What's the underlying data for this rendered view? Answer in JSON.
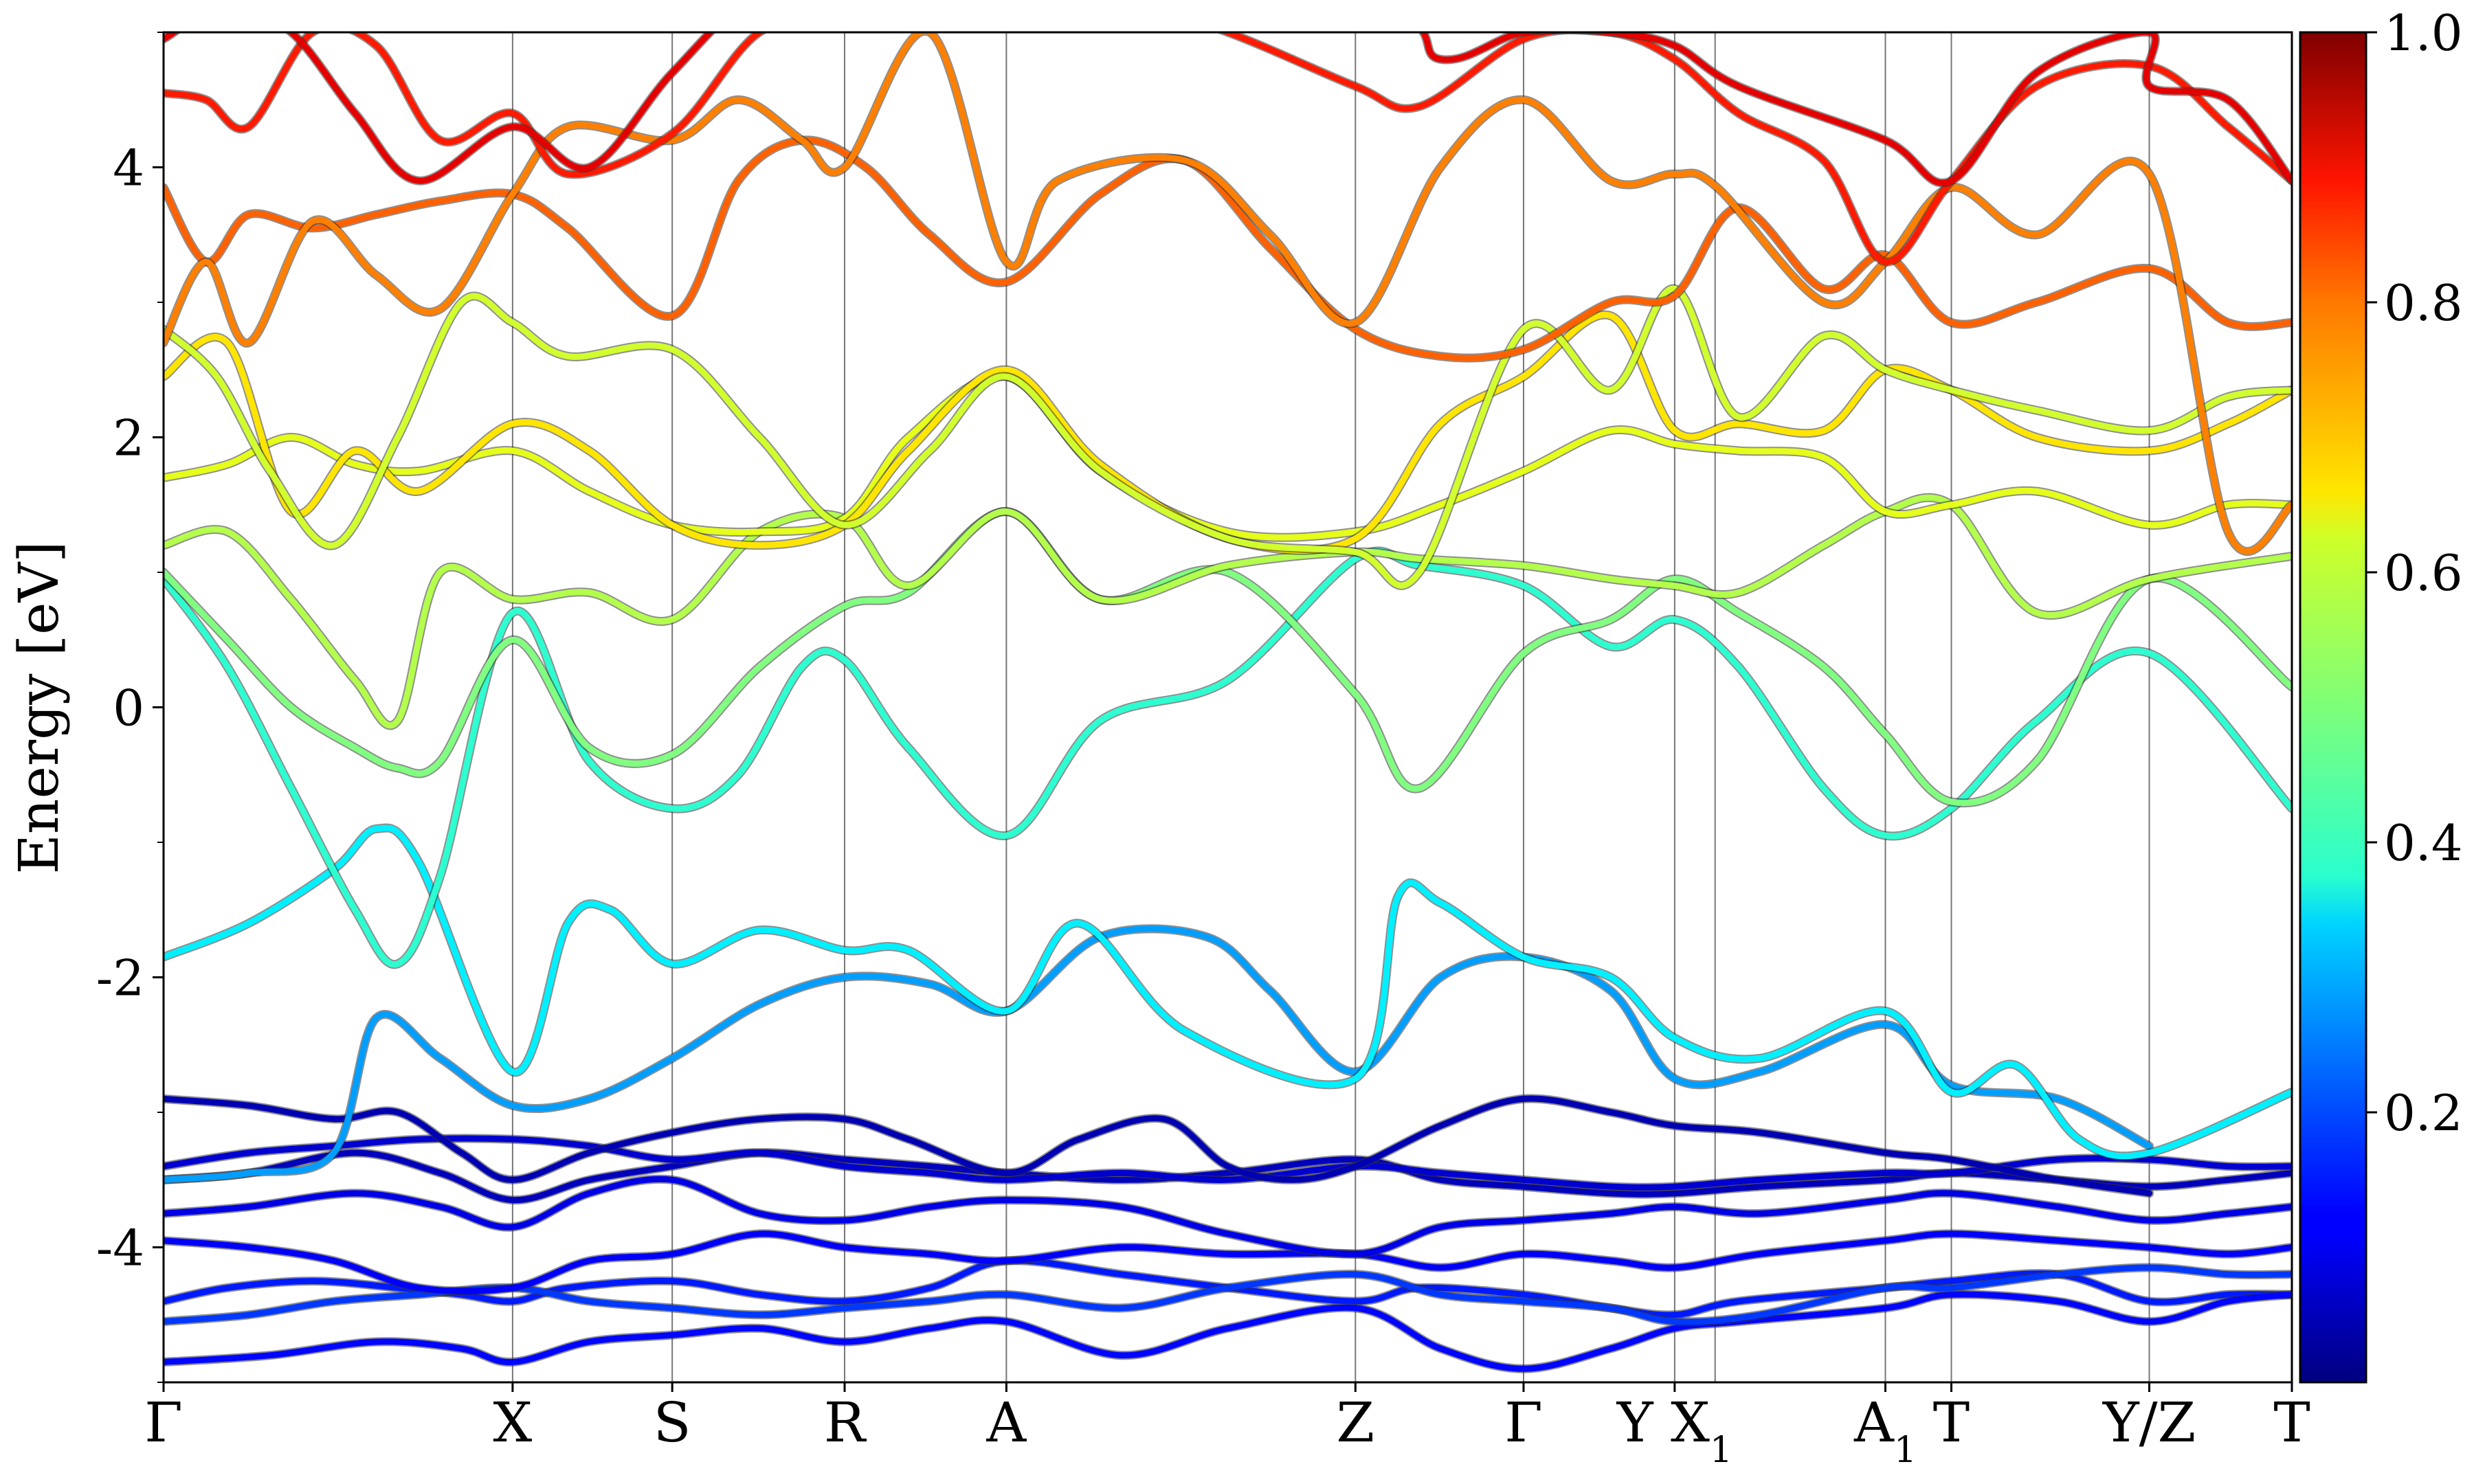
{
  "chart_data": {
    "type": "line",
    "ylabel": "Energy [eV]",
    "ylim": [
      -5,
      5
    ],
    "yticks": [
      "-4",
      "-2",
      "0",
      "2",
      "4"
    ],
    "ytick_values": [
      -4,
      -2,
      0,
      2,
      4
    ],
    "kpath": [
      {
        "label": "Γ",
        "sub": "",
        "x": 0.0
      },
      {
        "label": "X",
        "sub": "",
        "x": 1.64
      },
      {
        "label": "S",
        "sub": "",
        "x": 2.39
      },
      {
        "label": "R",
        "sub": "",
        "x": 3.2
      },
      {
        "label": "A",
        "sub": "",
        "x": 3.96
      },
      {
        "label": "Z",
        "sub": "",
        "x": 5.6
      },
      {
        "label": "Γ",
        "sub": "",
        "x": 6.39
      },
      {
        "label": "Y X",
        "sub": "1",
        "x": 7.1
      },
      {
        "label": "A",
        "sub": "1",
        "x": 8.09
      },
      {
        "label": "T",
        "sub": "",
        "x": 8.4
      },
      {
        "label": "Y/Z",
        "sub": "",
        "x": 9.33
      },
      {
        "label": "T",
        "sub": "",
        "x": 10.0
      }
    ],
    "vlines": [
      1.64,
      2.39,
      3.2,
      3.96,
      5.6,
      6.39,
      7.1,
      7.29,
      8.09,
      8.4,
      9.33
    ],
    "xlim": [
      0,
      10
    ],
    "colorbar": {
      "colormap": "jet",
      "range": [
        0,
        1
      ],
      "tick_values": [
        0.2,
        0.4,
        0.6,
        0.8,
        1.0
      ],
      "tick_labels": [
        "0.2",
        "0.4",
        "0.6",
        "0.8",
        "1.0"
      ]
    },
    "series": [
      {
        "x": [
          0,
          0.3,
          0.7,
          1.1,
          1.4,
          1.64,
          1.9,
          2.39,
          2.8,
          3.2,
          3.6,
          3.96,
          4.5,
          5.0,
          5.6,
          5.9,
          6.39,
          6.8,
          7.1,
          7.4,
          8.09,
          8.4,
          8.9,
          9.33,
          9.7,
          10.0
        ],
        "y": [
          -4.4,
          -4.3,
          -4.25,
          -4.3,
          -4.35,
          -4.4,
          -4.3,
          -4.25,
          -4.35,
          -4.4,
          -4.3,
          -4.1,
          -4.2,
          -4.3,
          -4.4,
          -4.3,
          -4.35,
          -4.45,
          -4.5,
          -4.4,
          -4.3,
          -4.25,
          -4.2,
          -4.4,
          -4.35,
          -4.35
        ],
        "c": 0.15
      },
      {
        "x": [
          0,
          0.5,
          1.0,
          1.4,
          1.64,
          2.0,
          2.39,
          2.8,
          3.2,
          3.6,
          3.96,
          4.5,
          5.0,
          5.6,
          6.0,
          6.39,
          6.8,
          7.1,
          7.4,
          8.09,
          8.4,
          8.9,
          9.33,
          9.7,
          10.0
        ],
        "y": [
          -4.85,
          -4.8,
          -4.7,
          -4.75,
          -4.85,
          -4.7,
          -4.65,
          -4.6,
          -4.7,
          -4.6,
          -4.55,
          -4.8,
          -4.6,
          -4.45,
          -4.75,
          -4.9,
          -4.75,
          -4.6,
          -4.55,
          -4.45,
          -4.35,
          -4.4,
          -4.55,
          -4.4,
          -4.35
        ],
        "c": 0.13
      },
      {
        "x": [
          0,
          0.4,
          0.8,
          1.2,
          1.64,
          2.0,
          2.39,
          2.8,
          3.2,
          3.6,
          3.96,
          4.5,
          5.0,
          5.6,
          6.0,
          6.39,
          6.8,
          7.1,
          7.5,
          8.09,
          8.4,
          8.9,
          9.33,
          9.7,
          10.0
        ],
        "y": [
          -4.55,
          -4.5,
          -4.4,
          -4.35,
          -4.3,
          -4.4,
          -4.45,
          -4.5,
          -4.45,
          -4.4,
          -4.35,
          -4.45,
          -4.3,
          -4.2,
          -4.35,
          -4.4,
          -4.45,
          -4.55,
          -4.5,
          -4.3,
          -4.3,
          -4.2,
          -4.15,
          -4.2,
          -4.2
        ],
        "c": 0.18
      },
      {
        "x": [
          0,
          0.4,
          0.8,
          1.2,
          1.64,
          2.0,
          2.39,
          2.8,
          3.2,
          3.6,
          3.96,
          4.5,
          5.0,
          5.6,
          6.0,
          6.39,
          6.8,
          7.1,
          7.5,
          8.09,
          8.4,
          8.9,
          9.33,
          9.7,
          10.0
        ],
        "y": [
          -3.95,
          -4.0,
          -4.1,
          -4.3,
          -4.3,
          -4.1,
          -4.05,
          -3.9,
          -4.0,
          -4.05,
          -4.1,
          -4.0,
          -4.05,
          -4.05,
          -4.15,
          -4.05,
          -4.1,
          -4.15,
          -4.05,
          -3.95,
          -3.9,
          -3.95,
          -4.0,
          -4.05,
          -4.0
        ],
        "c": 0.12
      },
      {
        "x": [
          0,
          0.4,
          0.9,
          1.3,
          1.64,
          2.0,
          2.39,
          2.8,
          3.2,
          3.6,
          3.96,
          4.5,
          5.0,
          5.6,
          6.0,
          6.39,
          6.8,
          7.1,
          7.5,
          8.09,
          8.4,
          8.9,
          9.33,
          9.7,
          10.0
        ],
        "y": [
          -3.75,
          -3.7,
          -3.6,
          -3.7,
          -3.85,
          -3.6,
          -3.5,
          -3.75,
          -3.8,
          -3.7,
          -3.65,
          -3.7,
          -3.9,
          -4.05,
          -3.85,
          -3.8,
          -3.75,
          -3.7,
          -3.75,
          -3.65,
          -3.6,
          -3.7,
          -3.8,
          -3.75,
          -3.7
        ],
        "c": 0.1
      },
      {
        "x": [
          0,
          0.4,
          0.9,
          1.3,
          1.64,
          2.0,
          2.39,
          2.8,
          3.2,
          3.6,
          3.96,
          4.5,
          5.0,
          5.6,
          6.0,
          6.39,
          6.8,
          7.1,
          7.5,
          8.09,
          8.4,
          8.9,
          9.33,
          9.7,
          10.0
        ],
        "y": [
          -3.5,
          -3.45,
          -3.3,
          -3.45,
          -3.65,
          -3.5,
          -3.4,
          -3.3,
          -3.35,
          -3.4,
          -3.45,
          -3.5,
          -3.45,
          -3.35,
          -3.5,
          -3.55,
          -3.6,
          -3.6,
          -3.55,
          -3.5,
          -3.45,
          -3.5,
          -3.55,
          -3.5,
          -3.45
        ],
        "c": 0.06
      },
      {
        "x": [
          0,
          0.4,
          0.8,
          1.2,
          1.64,
          2.0,
          2.39,
          2.8,
          3.2,
          3.6,
          3.96,
          4.5,
          5.0,
          5.6,
          6.0,
          6.39,
          6.8,
          7.1,
          7.5,
          8.09,
          8.4,
          8.9,
          9.33,
          9.7,
          10.0
        ],
        "y": [
          -3.4,
          -3.3,
          -3.25,
          -3.2,
          -3.2,
          -3.25,
          -3.35,
          -3.3,
          -3.4,
          -3.45,
          -3.5,
          -3.45,
          -3.5,
          -3.4,
          -3.45,
          -3.5,
          -3.55,
          -3.55,
          -3.5,
          -3.45,
          -3.45,
          -3.35,
          -3.35,
          -3.4,
          -3.4
        ],
        "c": 0.08
      },
      {
        "x": [
          0,
          0.4,
          0.8,
          1.1,
          1.4,
          1.64,
          2.0,
          2.39,
          2.8,
          3.2,
          3.5,
          3.96,
          4.3,
          4.7,
          5.0,
          5.3,
          5.6,
          6.0,
          6.39,
          6.8,
          7.1,
          7.5,
          8.09,
          8.4,
          8.9,
          9.33
        ],
        "y": [
          -2.9,
          -2.95,
          -3.05,
          -3.0,
          -3.3,
          -3.5,
          -3.3,
          -3.15,
          -3.05,
          -3.05,
          -3.2,
          -3.45,
          -3.2,
          -3.05,
          -3.4,
          -3.5,
          -3.4,
          -3.1,
          -2.9,
          -3.0,
          -3.1,
          -3.15,
          -3.3,
          -3.35,
          -3.5,
          -3.6
        ],
        "c": 0.05
      },
      {
        "x": [
          0,
          0.4,
          0.8,
          1.0,
          1.3,
          1.64,
          2.0,
          2.39,
          2.8,
          3.2,
          3.6,
          3.96,
          4.4,
          4.9,
          5.2,
          5.6,
          6.0,
          6.39,
          6.8,
          7.1,
          7.5,
          8.09,
          8.4,
          8.9,
          9.33
        ],
        "y": [
          -3.5,
          -3.45,
          -3.3,
          -2.3,
          -2.6,
          -2.95,
          -2.9,
          -2.6,
          -2.2,
          -2.0,
          -2.05,
          -2.25,
          -1.7,
          -1.7,
          -2.1,
          -2.7,
          -2.0,
          -1.85,
          -2.1,
          -2.75,
          -2.7,
          -2.35,
          -2.8,
          -2.9,
          -3.25
        ],
        "c": 0.28
      },
      {
        "x": [
          0,
          0.4,
          0.8,
          1.0,
          1.2,
          1.64,
          1.9,
          2.1,
          2.39,
          2.8,
          3.2,
          3.5,
          3.96,
          4.3,
          4.8,
          5.6,
          5.8,
          6.0,
          6.39,
          6.8,
          7.1,
          7.5,
          8.09,
          8.4,
          8.7,
          9.0,
          9.33,
          10.0
        ],
        "y": [
          -1.85,
          -1.6,
          -1.2,
          -0.9,
          -1.15,
          -2.7,
          -1.6,
          -1.5,
          -1.9,
          -1.65,
          -1.8,
          -1.8,
          -2.25,
          -1.6,
          -2.4,
          -2.75,
          -1.4,
          -1.45,
          -1.85,
          -2.0,
          -2.45,
          -2.6,
          -2.25,
          -2.85,
          -2.65,
          -3.2,
          -3.3,
          -2.85
        ],
        "c": 0.36
      },
      {
        "x": [
          0,
          0.3,
          0.6,
          0.9,
          1.1,
          1.3,
          1.64,
          2.0,
          2.39,
          2.7,
          3.0,
          3.2,
          3.5,
          3.96,
          4.4,
          5.0,
          5.6,
          5.9,
          6.39,
          6.8,
          7.1,
          7.4,
          7.8,
          8.09,
          8.4,
          8.8,
          9.33,
          10.0
        ],
        "y": [
          0.95,
          0.3,
          -0.6,
          -1.5,
          -1.9,
          -1.25,
          0.7,
          -0.4,
          -0.75,
          -0.5,
          0.3,
          0.35,
          -0.3,
          -0.95,
          -0.1,
          0.2,
          1.1,
          1.05,
          0.9,
          0.45,
          0.65,
          0.3,
          -0.6,
          -0.95,
          -0.75,
          -0.1,
          0.4,
          -0.75
        ],
        "c": 0.42
      },
      {
        "x": [
          0,
          0.3,
          0.6,
          0.9,
          1.1,
          1.3,
          1.64,
          2.0,
          2.39,
          2.8,
          3.2,
          3.5,
          3.96,
          4.4,
          5.0,
          5.6,
          5.9,
          6.39,
          6.8,
          7.1,
          7.4,
          7.8,
          8.09,
          8.4,
          8.8,
          9.33,
          10.0
        ],
        "y": [
          1.0,
          0.5,
          0.0,
          -0.3,
          -0.45,
          -0.4,
          0.5,
          -0.3,
          -0.35,
          0.3,
          0.75,
          0.85,
          1.45,
          0.8,
          1.0,
          0.1,
          -0.6,
          0.4,
          0.65,
          0.95,
          0.7,
          0.3,
          -0.2,
          -0.7,
          -0.4,
          0.95,
          0.15
        ],
        "c": 0.5
      },
      {
        "x": [
          0,
          0.3,
          0.6,
          0.9,
          1.1,
          1.3,
          1.64,
          2.0,
          2.39,
          2.8,
          3.2,
          3.5,
          3.96,
          4.4,
          5.0,
          5.6,
          5.9,
          6.39,
          6.8,
          7.1,
          7.4,
          7.8,
          8.09,
          8.4,
          8.8,
          9.33,
          10.0
        ],
        "y": [
          1.2,
          1.3,
          0.8,
          0.2,
          -0.1,
          1.0,
          0.8,
          0.85,
          0.65,
          1.3,
          1.4,
          0.9,
          1.45,
          0.8,
          1.05,
          1.15,
          1.1,
          1.05,
          0.95,
          0.9,
          0.85,
          1.2,
          1.45,
          1.5,
          0.7,
          0.95,
          1.12
        ],
        "c": 0.55
      },
      {
        "x": [
          0,
          0.3,
          0.6,
          0.9,
          1.2,
          1.64,
          2.0,
          2.39,
          2.8,
          3.2,
          3.5,
          3.96,
          4.4,
          5.0,
          5.6,
          6.0,
          6.39,
          6.8,
          7.1,
          7.4,
          7.8,
          8.09,
          8.4,
          8.8,
          9.33,
          9.7,
          10.0
        ],
        "y": [
          1.7,
          1.8,
          2.0,
          1.8,
          1.75,
          1.9,
          1.6,
          1.35,
          1.3,
          1.4,
          2.0,
          2.45,
          1.75,
          1.3,
          1.3,
          1.5,
          1.75,
          2.05,
          1.95,
          1.9,
          1.85,
          1.45,
          1.5,
          1.6,
          1.35,
          1.5,
          1.5
        ],
        "c": 0.6
      },
      {
        "x": [
          0,
          0.3,
          0.6,
          0.9,
          1.2,
          1.64,
          2.0,
          2.39,
          2.8,
          3.2,
          3.5,
          3.96,
          4.4,
          5.0,
          5.6,
          6.0,
          6.39,
          6.8,
          7.1,
          7.4,
          7.8,
          8.09,
          8.4,
          8.8,
          9.33,
          9.7,
          10.0
        ],
        "y": [
          2.45,
          2.7,
          1.45,
          1.9,
          1.6,
          2.1,
          1.9,
          1.35,
          1.2,
          1.35,
          1.9,
          2.5,
          1.8,
          1.25,
          1.25,
          2.1,
          2.45,
          2.9,
          2.05,
          2.1,
          2.05,
          2.5,
          2.35,
          2.0,
          1.9,
          2.1,
          2.35
        ],
        "c": 0.65
      },
      {
        "x": [
          0,
          0.25,
          0.5,
          0.8,
          1.1,
          1.4,
          1.64,
          1.9,
          2.39,
          2.8,
          3.2,
          3.6,
          3.96,
          4.4,
          5.0,
          5.6,
          5.9,
          6.39,
          6.8,
          7.1,
          7.4,
          7.8,
          8.09,
          8.4,
          8.8,
          9.33,
          9.7,
          10.0
        ],
        "y": [
          2.8,
          2.45,
          1.75,
          1.2,
          2.0,
          3.0,
          2.85,
          2.6,
          2.65,
          2.0,
          1.35,
          1.9,
          2.45,
          1.75,
          1.25,
          1.15,
          1.0,
          2.8,
          2.35,
          3.1,
          2.15,
          2.75,
          2.5,
          2.35,
          2.2,
          2.05,
          2.3,
          2.35
        ],
        "c": 0.58
      },
      {
        "x": [
          0,
          0.2,
          0.4,
          0.7,
          1.0,
          1.3,
          1.64,
          1.9,
          2.39,
          2.7,
          3.0,
          3.3,
          3.6,
          3.96,
          4.4,
          4.8,
          5.2,
          5.6,
          6.0,
          6.39,
          6.8,
          7.1,
          7.4,
          7.8,
          8.09,
          8.4,
          8.8,
          9.33,
          9.7,
          10.0
        ],
        "y": [
          3.85,
          3.3,
          3.65,
          3.55,
          3.65,
          3.75,
          3.8,
          3.55,
          2.9,
          3.9,
          4.2,
          4.0,
          3.5,
          3.15,
          3.8,
          4.05,
          3.4,
          2.8,
          2.6,
          2.65,
          3.0,
          3.05,
          3.7,
          3.1,
          3.35,
          2.85,
          3.0,
          3.25,
          2.85,
          2.85
        ],
        "c": 0.78
      },
      {
        "x": [
          0,
          0.2,
          0.4,
          0.7,
          1.0,
          1.3,
          1.64,
          1.9,
          2.39,
          2.7,
          3.0,
          3.2,
          3.6,
          3.96,
          4.2,
          4.8,
          5.2,
          5.6,
          6.0,
          6.39,
          6.8,
          7.1,
          7.3,
          7.8,
          8.09,
          8.4,
          8.8,
          9.33,
          9.7,
          10.0
        ],
        "y": [
          2.7,
          3.3,
          2.7,
          3.6,
          3.2,
          2.95,
          3.8,
          4.3,
          4.2,
          4.5,
          4.2,
          4.0,
          5.0,
          3.3,
          3.9,
          4.05,
          3.5,
          2.85,
          4.0,
          4.5,
          3.9,
          3.95,
          3.85,
          3.0,
          3.3,
          3.85,
          3.5,
          3.95,
          1.3,
          1.5
        ],
        "c": 0.75
      },
      {
        "x": [
          0,
          0.2,
          0.4,
          0.7,
          1.0,
          1.3,
          1.64,
          1.9,
          2.39,
          2.8,
          3.2,
          3.6,
          3.96,
          4.4,
          5.0,
          5.6,
          5.9,
          6.39,
          6.8,
          7.1,
          7.4,
          7.8,
          8.09,
          8.4,
          8.8,
          9.33,
          9.7,
          10.0
        ],
        "y": [
          4.55,
          4.5,
          4.3,
          5.0,
          4.9,
          4.2,
          4.4,
          3.95,
          4.25,
          5.0,
          5.1,
          5.3,
          5.4,
          5.3,
          5.0,
          4.6,
          4.45,
          4.95,
          5.0,
          4.8,
          4.4,
          4.05,
          3.3,
          3.9,
          4.6,
          4.75,
          4.3,
          3.9
        ],
        "c": 0.85
      },
      {
        "x": [
          0,
          0.3,
          0.6,
          0.9,
          1.2,
          1.64,
          2.0,
          2.39,
          2.8,
          3.2,
          5.6,
          6.0,
          6.39,
          6.8,
          7.1,
          7.4,
          8.09,
          8.4,
          8.8,
          9.33,
          9.33,
          9.7,
          10.0
        ],
        "y": [
          4.95,
          5.2,
          5.0,
          4.4,
          3.9,
          4.3,
          4.0,
          4.7,
          5.3,
          5.3,
          5.2,
          4.8,
          5.0,
          5.0,
          4.9,
          4.6,
          4.2,
          3.9,
          4.7,
          5.0,
          4.6,
          4.5,
          3.9
        ],
        "c": 0.9
      }
    ]
  }
}
